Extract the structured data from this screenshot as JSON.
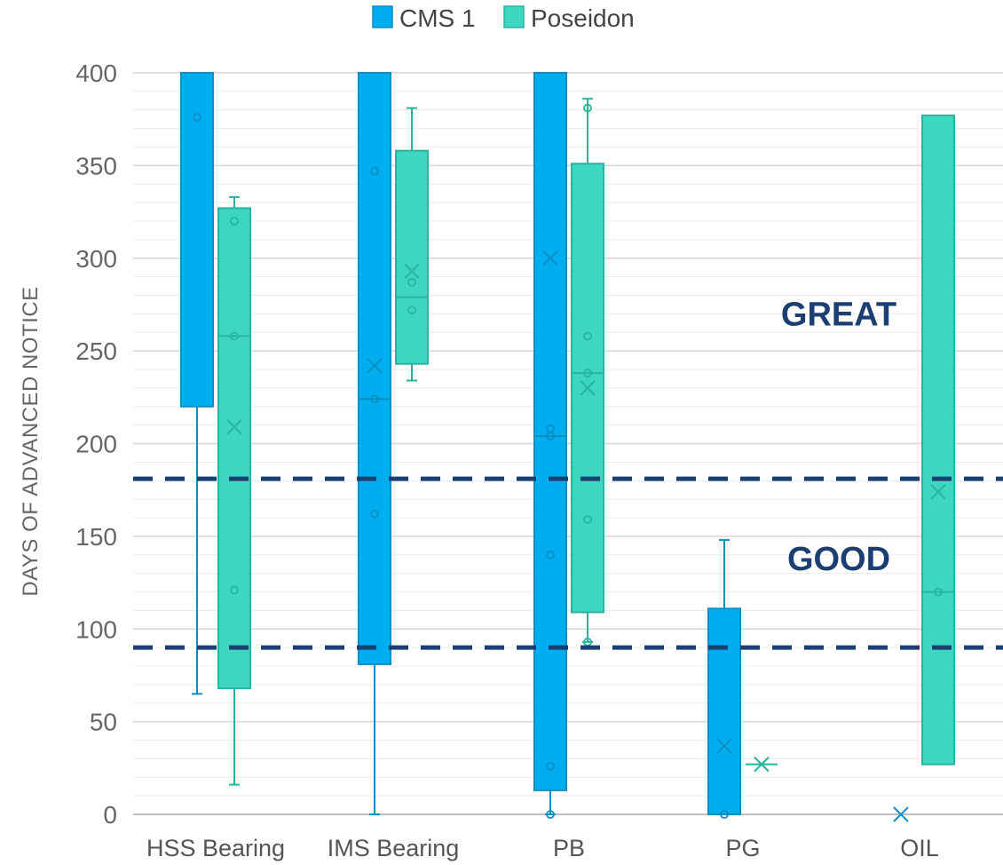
{
  "chart_data": {
    "type": "box",
    "ylabel": "DAYS OF ADVANCED NOTICE",
    "xlabel": "",
    "ylim": [
      0,
      400
    ],
    "yticks": [
      0,
      50,
      100,
      150,
      200,
      250,
      300,
      350,
      400
    ],
    "grid": "horizontal minor lines every 10",
    "legend_position": "top-center",
    "categories": [
      "HSS Bearing",
      "IMS Bearing",
      "PB",
      "PG",
      "OIL"
    ],
    "series": [
      {
        "name": "CMS 1",
        "color": "#00aeef",
        "boxes": [
          {
            "category": "HSS Bearing",
            "whisker_low": 65,
            "q1": 220,
            "median": null,
            "q3": 400,
            "whisker_high": 400,
            "mean": null,
            "points": [
              376
            ]
          },
          {
            "category": "IMS Bearing",
            "whisker_low": 0,
            "q1": 81,
            "median": 224,
            "q3": 400,
            "whisker_high": 400,
            "mean": 242,
            "points": [
              347,
              224,
              162
            ]
          },
          {
            "category": "PB",
            "whisker_low": 0,
            "q1": 13,
            "median": 204,
            "q3": 400,
            "whisker_high": 400,
            "mean": 300,
            "points": [
              208,
              204,
              140,
              26,
              0
            ]
          },
          {
            "category": "PG",
            "whisker_low": 0,
            "q1": 0,
            "median": null,
            "q3": 111,
            "whisker_high": 148,
            "mean": 37,
            "points": [
              0
            ]
          },
          {
            "category": "OIL",
            "whisker_low": null,
            "q1": null,
            "median": null,
            "q3": null,
            "whisker_high": null,
            "mean": 0,
            "points": []
          }
        ]
      },
      {
        "name": "Poseidon",
        "color": "#3dd6c0",
        "boxes": [
          {
            "category": "HSS Bearing",
            "whisker_low": 16,
            "q1": 68,
            "median": 258,
            "q3": 327,
            "whisker_high": 333,
            "mean": 209,
            "points": [
              320,
              258,
              121
            ]
          },
          {
            "category": "IMS Bearing",
            "whisker_low": 234,
            "q1": 243,
            "median": 279,
            "q3": 358,
            "whisker_high": 381,
            "mean": 293,
            "points": [
              287,
              272
            ]
          },
          {
            "category": "PB",
            "whisker_low": 93,
            "q1": 109,
            "median": 238,
            "q3": 351,
            "whisker_high": 386,
            "mean": 230,
            "points": [
              381,
              258,
              238,
              159,
              93
            ]
          },
          {
            "category": "PG",
            "whisker_low": null,
            "q1": null,
            "median": 27,
            "q3": null,
            "whisker_high": null,
            "mean": 27,
            "points": []
          },
          {
            "category": "OIL",
            "whisker_low": null,
            "q1": 27,
            "median": 120,
            "q3": 377,
            "whisker_high": null,
            "mean": 174,
            "points": [
              120
            ]
          }
        ]
      }
    ],
    "reference_lines": [
      {
        "value": 181,
        "style": "dashed",
        "color": "#1c3f73"
      },
      {
        "value": 90,
        "style": "dashed",
        "color": "#1c3f73"
      }
    ],
    "annotations": [
      {
        "text": "GREAT",
        "y": 270
      },
      {
        "text": "GOOD",
        "y": 138
      }
    ]
  }
}
